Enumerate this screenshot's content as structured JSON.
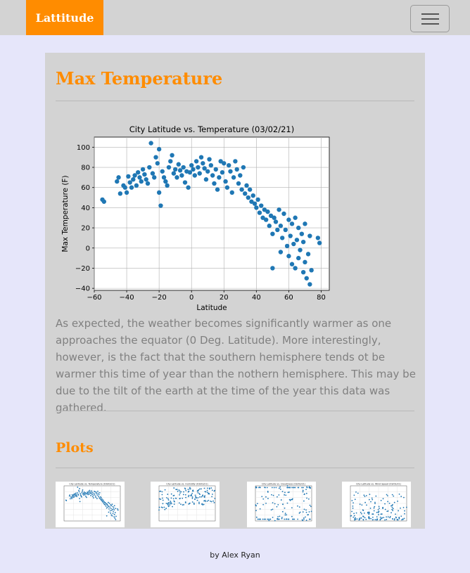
{
  "navbar": {
    "brand": "Lattitude",
    "toggle_icon": "hamburger-icon"
  },
  "page": {
    "heading": "Max Temperature",
    "description": "As expected, the weather becomes significantly warmer as one approaches the equator (0 Deg. Latitude). More interestingly, however, is the fact that the southern hemisphere tends ot be warmer this time of year than the nothern hemisphere. This may be due to the tilt of the earth at the time of the year this data was gathered.",
    "plots_heading": "Plots"
  },
  "chart_data": {
    "type": "scatter",
    "title": "City Latitude vs. Temperature (03/02/21)",
    "xlabel": "Latitude",
    "ylabel": "Max Temperature (F)",
    "xlim": [
      -60,
      85
    ],
    "ylim": [
      -42,
      110
    ],
    "xticks": [
      "−60",
      "−40",
      "−20",
      "0",
      "20",
      "40",
      "60",
      "80"
    ],
    "yticks": [
      "−40",
      "−20",
      "0",
      "20",
      "40",
      "60",
      "80",
      "100"
    ],
    "grid": true,
    "color": "#1f77b4",
    "points": [
      [
        -55,
        48
      ],
      [
        -54,
        46
      ],
      [
        -46,
        66
      ],
      [
        -45,
        70
      ],
      [
        -44,
        54
      ],
      [
        -42,
        62
      ],
      [
        -41,
        60
      ],
      [
        -40,
        55
      ],
      [
        -39,
        71
      ],
      [
        -38,
        65
      ],
      [
        -37,
        60
      ],
      [
        -36,
        68
      ],
      [
        -35,
        72
      ],
      [
        -34,
        62
      ],
      [
        -33,
        75
      ],
      [
        -32,
        70
      ],
      [
        -31,
        66
      ],
      [
        -30,
        78
      ],
      [
        -29,
        73
      ],
      [
        -28,
        68
      ],
      [
        -27,
        64
      ],
      [
        -26,
        80
      ],
      [
        -25,
        104
      ],
      [
        -24,
        74
      ],
      [
        -23,
        70
      ],
      [
        -22,
        90
      ],
      [
        -21,
        84
      ],
      [
        -20,
        98
      ],
      [
        -20,
        55
      ],
      [
        -19,
        42
      ],
      [
        -18,
        76
      ],
      [
        -17,
        70
      ],
      [
        -16,
        66
      ],
      [
        -15,
        62
      ],
      [
        -14,
        80
      ],
      [
        -13,
        86
      ],
      [
        -12,
        92
      ],
      [
        -11,
        74
      ],
      [
        -10,
        78
      ],
      [
        -9,
        70
      ],
      [
        -8,
        83
      ],
      [
        -7,
        77
      ],
      [
        -6,
        72
      ],
      [
        -5,
        80
      ],
      [
        -4,
        65
      ],
      [
        -3,
        76
      ],
      [
        -2,
        60
      ],
      [
        -1,
        75
      ],
      [
        0,
        82
      ],
      [
        1,
        78
      ],
      [
        2,
        72
      ],
      [
        3,
        86
      ],
      [
        4,
        80
      ],
      [
        5,
        74
      ],
      [
        6,
        90
      ],
      [
        7,
        84
      ],
      [
        8,
        79
      ],
      [
        9,
        68
      ],
      [
        10,
        76
      ],
      [
        11,
        88
      ],
      [
        12,
        82
      ],
      [
        13,
        72
      ],
      [
        14,
        64
      ],
      [
        15,
        78
      ],
      [
        16,
        58
      ],
      [
        17,
        70
      ],
      [
        18,
        86
      ],
      [
        19,
        75
      ],
      [
        20,
        84
      ],
      [
        21,
        66
      ],
      [
        22,
        60
      ],
      [
        23,
        82
      ],
      [
        24,
        76
      ],
      [
        25,
        55
      ],
      [
        26,
        70
      ],
      [
        27,
        86
      ],
      [
        28,
        78
      ],
      [
        29,
        64
      ],
      [
        30,
        72
      ],
      [
        31,
        58
      ],
      [
        32,
        80
      ],
      [
        33,
        54
      ],
      [
        34,
        62
      ],
      [
        35,
        50
      ],
      [
        36,
        58
      ],
      [
        37,
        46
      ],
      [
        38,
        52
      ],
      [
        39,
        44
      ],
      [
        40,
        40
      ],
      [
        41,
        48
      ],
      [
        42,
        35
      ],
      [
        43,
        42
      ],
      [
        44,
        30
      ],
      [
        45,
        38
      ],
      [
        46,
        28
      ],
      [
        47,
        36
      ],
      [
        48,
        22
      ],
      [
        49,
        32
      ],
      [
        50,
        -20
      ],
      [
        50,
        14
      ],
      [
        51,
        30
      ],
      [
        52,
        26
      ],
      [
        53,
        18
      ],
      [
        54,
        38
      ],
      [
        55,
        -4
      ],
      [
        55,
        22
      ],
      [
        56,
        10
      ],
      [
        57,
        34
      ],
      [
        58,
        18
      ],
      [
        59,
        2
      ],
      [
        60,
        -8
      ],
      [
        60,
        28
      ],
      [
        61,
        12
      ],
      [
        62,
        -16
      ],
      [
        62,
        24
      ],
      [
        63,
        4
      ],
      [
        64,
        -20
      ],
      [
        64,
        30
      ],
      [
        65,
        8
      ],
      [
        66,
        -10
      ],
      [
        66,
        20
      ],
      [
        67,
        -2
      ],
      [
        68,
        14
      ],
      [
        69,
        -24
      ],
      [
        69,
        6
      ],
      [
        70,
        -14
      ],
      [
        70,
        24
      ],
      [
        71,
        -30
      ],
      [
        72,
        -6
      ],
      [
        73,
        -36
      ],
      [
        73,
        12
      ],
      [
        74,
        -22
      ],
      [
        78,
        10
      ],
      [
        79,
        5
      ]
    ]
  },
  "thumbnails": [
    {
      "title": "City Latitude vs. Temperature (03/02/21)",
      "alt": "Max Temperature plot"
    },
    {
      "title": "City Latitude vs. Humidity (03/02/21)",
      "alt": "Humidity plot"
    },
    {
      "title": "City Latitude vs. Cloudiness (03/02/21)",
      "alt": "Cloudiness plot"
    },
    {
      "title": "City Latitude vs. Wind Speed (03/02/21)",
      "alt": "Wind Speed plot"
    }
  ],
  "footer": {
    "text": "by Alex Ryan"
  },
  "colors": {
    "accent": "#ff8c00",
    "background": "#e6e6fa",
    "panel": "#d3d3d3",
    "nav": "#d3d3d3"
  }
}
